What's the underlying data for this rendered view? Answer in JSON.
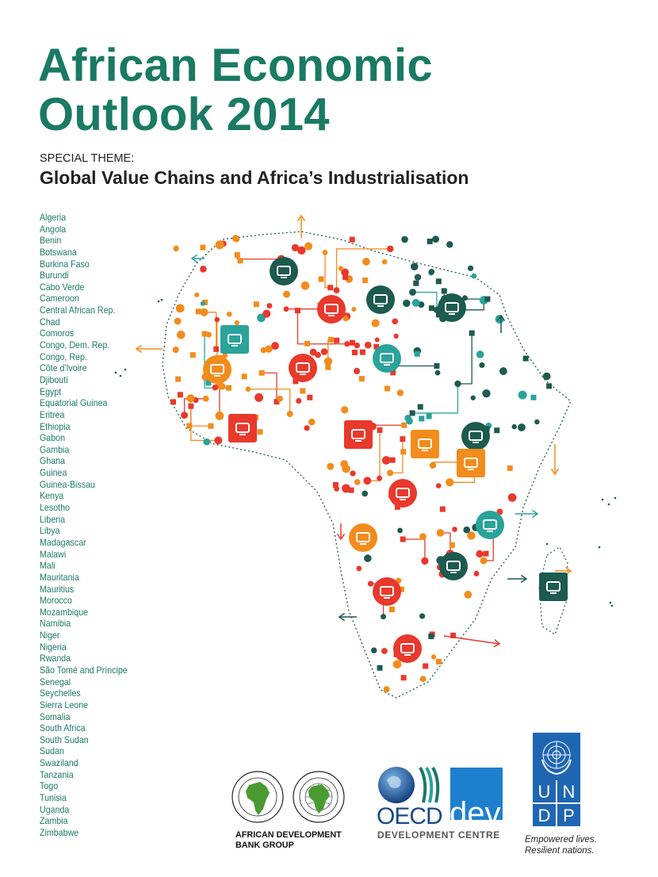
{
  "cover": {
    "title_line1": "African Economic",
    "title_line2": "Outlook 2014",
    "theme_label": "SPECIAL THEME:",
    "theme_title": "Global Value Chains and Africa’s Industrialisation"
  },
  "countries": [
    "Algeria",
    "Angola",
    "Benin",
    "Botswana",
    "Burkina Faso",
    "Burundi",
    "Cabo Verde",
    "Cameroon",
    "Central African Rep.",
    "Chad",
    "Comoros",
    "Congo, Dem. Rep.",
    "Congo, Rep.",
    "Côte d'Ivoire",
    "Djibouti",
    "Egypt",
    "Equatorial Guinea",
    "Eritrea",
    "Ethiopia",
    "Gabon",
    "Gambia",
    "Ghana",
    "Guinea",
    "Guinea-Bissau",
    "Kenya",
    "Lesotho",
    "Liberia",
    "Libya",
    "Madagascar",
    "Malawi",
    "Mali",
    "Mauritania",
    "Mauritius",
    "Morocco",
    "Mozambique",
    "Namibia",
    "Niger",
    "Nigeria",
    "Rwanda",
    "São Tomé and Príncipe",
    "Senegal",
    "Seychelles",
    "Sierra Leone",
    "Somalia",
    "South Africa",
    "South Sudan",
    "Sudan",
    "Swaziland",
    "Tanzania",
    "Togo",
    "Tunisia",
    "Uganda",
    "Zambia",
    "Zimbabwe"
  ],
  "logos": {
    "afdb_line1": "AFRICAN DEVELOPMENT",
    "afdb_line2": "BANK GROUP",
    "oecd": "OECD",
    "oecd_dev": "dev",
    "oecd_centre": "DEVELOPMENT  CENTRE",
    "undp_letters": [
      "U",
      "N",
      "D",
      "P"
    ],
    "undp_tag_line1": "Empowered lives.",
    "undp_tag_line2": "Resilient nations."
  },
  "colors": {
    "title_green": "#1a7a63",
    "red": "#e8392c",
    "orange": "#f28c1c",
    "teal": "#2aa39a",
    "dark_green": "#1d5a50",
    "un_blue": "#1f66b2"
  },
  "map_icons": [
    {
      "name": "car-icon",
      "color": "dark_green"
    },
    {
      "name": "house-icon",
      "color": "red"
    },
    {
      "name": "tshirt-icon",
      "color": "dark_green"
    },
    {
      "name": "phone-icon",
      "color": "dark_green"
    },
    {
      "name": "gear-icon",
      "color": "teal"
    },
    {
      "name": "tractor-icon",
      "color": "orange"
    },
    {
      "name": "computer-icon",
      "color": "red"
    },
    {
      "name": "music-icon",
      "color": "teal"
    },
    {
      "name": "tools-icon",
      "color": "red"
    },
    {
      "name": "tshirt-icon",
      "color": "red"
    },
    {
      "name": "cow-icon",
      "color": "orange"
    },
    {
      "name": "wifi-icon",
      "color": "dark_green"
    },
    {
      "name": "truck-icon",
      "color": "orange"
    },
    {
      "name": "knife-icon",
      "color": "red"
    },
    {
      "name": "excavator-icon",
      "color": "teal"
    },
    {
      "name": "computer-icon",
      "color": "orange"
    },
    {
      "name": "drill-icon",
      "color": "dark_green"
    },
    {
      "name": "car-icon",
      "color": "red"
    },
    {
      "name": "mobile-icon",
      "color": "dark_green"
    },
    {
      "name": "computer-icon",
      "color": "red"
    }
  ]
}
